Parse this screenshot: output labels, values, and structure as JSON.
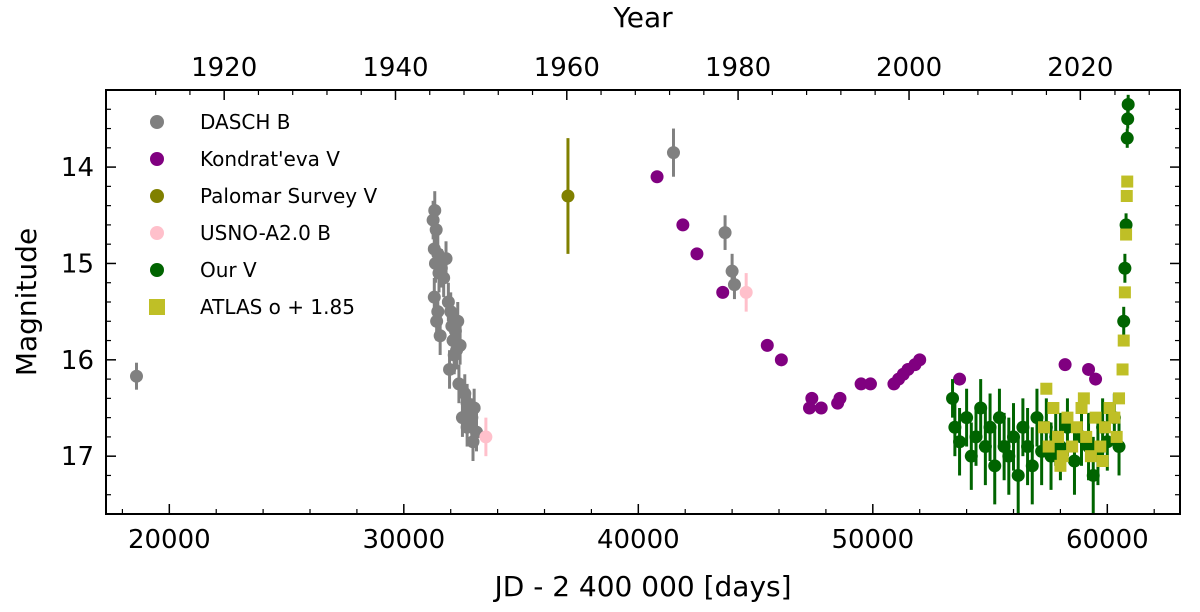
{
  "chart_data": {
    "type": "scatter",
    "xlabel": "JD - 2 400 000 [days]",
    "ylabel": "Magnitude",
    "top_xlabel": "Year",
    "xlim": [
      17300,
      63100
    ],
    "ylim": [
      17.6,
      13.2
    ],
    "x_ticks": [
      20000,
      30000,
      40000,
      50000,
      60000
    ],
    "y_ticks": [
      14,
      15,
      16,
      17
    ],
    "top_ticks": [
      {
        "year": 1920,
        "jd": 22340
      },
      {
        "year": 1940,
        "jd": 29645
      },
      {
        "year": 1960,
        "jd": 36950
      },
      {
        "year": 1980,
        "jd": 44255
      },
      {
        "year": 2000,
        "jd": 51545
      },
      {
        "year": 2020,
        "jd": 58850
      }
    ],
    "legend_position": "upper-left",
    "series": [
      {
        "name": "DASCH B",
        "color": "#808080",
        "marker": "circle",
        "points": [
          [
            18600,
            16.17,
            0.14
          ],
          [
            31250,
            14.55,
            0.2
          ],
          [
            31320,
            14.45,
            0.2
          ],
          [
            31380,
            14.65,
            0.18
          ],
          [
            31300,
            14.85,
            0.2
          ],
          [
            31450,
            14.9,
            0.2
          ],
          [
            31350,
            15.0,
            0.2
          ],
          [
            31600,
            15.05,
            0.2
          ],
          [
            31700,
            15.15,
            0.2
          ],
          [
            31500,
            15.1,
            0.2
          ],
          [
            31800,
            14.95,
            0.18
          ],
          [
            31300,
            15.35,
            0.2
          ],
          [
            31450,
            15.5,
            0.2
          ],
          [
            31400,
            15.6,
            0.2
          ],
          [
            31550,
            15.75,
            0.2
          ],
          [
            31900,
            15.4,
            0.2
          ],
          [
            32000,
            15.5,
            0.2
          ],
          [
            32050,
            15.65,
            0.2
          ],
          [
            32100,
            15.8,
            0.2
          ],
          [
            32150,
            15.95,
            0.2
          ],
          [
            31950,
            16.1,
            0.2
          ],
          [
            32200,
            15.7,
            0.2
          ],
          [
            32300,
            15.6,
            0.2
          ],
          [
            32250,
            15.9,
            0.2
          ],
          [
            32400,
            15.85,
            0.2
          ],
          [
            32350,
            16.25,
            0.2
          ],
          [
            32600,
            16.35,
            0.2
          ],
          [
            32700,
            16.45,
            0.2
          ],
          [
            32800,
            16.55,
            0.2
          ],
          [
            32500,
            16.6,
            0.2
          ],
          [
            32900,
            16.6,
            0.2
          ],
          [
            33000,
            16.5,
            0.2
          ],
          [
            32700,
            16.7,
            0.2
          ],
          [
            33100,
            16.75,
            0.2
          ],
          [
            32950,
            16.85,
            0.2
          ],
          [
            41500,
            13.85,
            0.25
          ],
          [
            43700,
            14.68,
            0.18
          ],
          [
            44000,
            15.08,
            0.18
          ],
          [
            44100,
            15.22,
            0.15
          ]
        ]
      },
      {
        "name": "Kondrat'eva V",
        "color": "#800080",
        "marker": "circle",
        "points": [
          [
            40800,
            14.1
          ],
          [
            41900,
            14.6
          ],
          [
            42500,
            14.9
          ],
          [
            43600,
            15.3
          ],
          [
            45500,
            15.85
          ],
          [
            46100,
            16.0
          ],
          [
            47400,
            16.4
          ],
          [
            47300,
            16.5
          ],
          [
            47800,
            16.5
          ],
          [
            48600,
            16.4
          ],
          [
            48500,
            16.45
          ],
          [
            49500,
            16.25
          ],
          [
            49900,
            16.25
          ],
          [
            50900,
            16.25
          ],
          [
            51100,
            16.2
          ],
          [
            51300,
            16.15
          ],
          [
            51500,
            16.1
          ],
          [
            51800,
            16.05
          ],
          [
            52000,
            16.0
          ],
          [
            53700,
            16.2
          ],
          [
            58200,
            16.05
          ],
          [
            59200,
            16.1
          ],
          [
            59500,
            16.2
          ]
        ]
      },
      {
        "name": "Palomar Survey V",
        "color": "#808000",
        "marker": "circle",
        "points": [
          [
            37000,
            14.3,
            0.6
          ]
        ]
      },
      {
        "name": "USNO-A2.0 B",
        "color": "#ffc0cb",
        "marker": "circle",
        "points": [
          [
            33500,
            16.8,
            0.2
          ],
          [
            44600,
            15.3,
            0.2
          ]
        ]
      },
      {
        "name": "Our V",
        "color": "#006400",
        "marker": "circle",
        "points": [
          [
            53400,
            16.4,
            0.2
          ],
          [
            53500,
            16.7,
            0.3
          ],
          [
            53700,
            16.85,
            0.35
          ],
          [
            54000,
            16.6,
            0.3
          ],
          [
            54200,
            17.0,
            0.35
          ],
          [
            54400,
            16.8,
            0.3
          ],
          [
            54600,
            16.5,
            0.3
          ],
          [
            54800,
            16.9,
            0.4
          ],
          [
            55000,
            16.7,
            0.35
          ],
          [
            55200,
            17.1,
            0.4
          ],
          [
            55400,
            16.6,
            0.3
          ],
          [
            55600,
            16.9,
            0.35
          ],
          [
            55800,
            17.0,
            0.4
          ],
          [
            56000,
            16.8,
            0.35
          ],
          [
            56200,
            17.2,
            0.4
          ],
          [
            56400,
            16.7,
            0.3
          ],
          [
            56600,
            16.9,
            0.4
          ],
          [
            56800,
            17.1,
            0.4
          ],
          [
            57000,
            16.6,
            0.3
          ],
          [
            57200,
            16.95,
            0.35
          ],
          [
            57400,
            16.7,
            0.3
          ],
          [
            57600,
            17.0,
            0.35
          ],
          [
            57800,
            16.8,
            0.3
          ],
          [
            58000,
            16.9,
            0.35
          ],
          [
            58300,
            16.7,
            0.3
          ],
          [
            58600,
            17.05,
            0.35
          ],
          [
            58900,
            16.8,
            0.3
          ],
          [
            59200,
            16.9,
            0.35
          ],
          [
            59400,
            17.2,
            0.4
          ],
          [
            59600,
            16.95,
            0.35
          ],
          [
            59800,
            16.7,
            0.3
          ],
          [
            60000,
            16.85,
            0.3
          ],
          [
            60300,
            16.6,
            0.25
          ],
          [
            60500,
            16.9,
            0.3
          ],
          [
            60700,
            15.6,
            0.15
          ],
          [
            60750,
            15.05,
            0.15
          ],
          [
            60800,
            14.6,
            0.12
          ],
          [
            60850,
            13.7,
            0.1
          ],
          [
            60870,
            13.5,
            0.1
          ],
          [
            60890,
            13.35,
            0.1
          ]
        ]
      },
      {
        "name": "ATLAS o + 1.85",
        "color": "#bfbf26",
        "marker": "square",
        "points": [
          [
            57300,
            16.7
          ],
          [
            57500,
            16.9
          ],
          [
            57700,
            16.5
          ],
          [
            57900,
            16.8
          ],
          [
            58100,
            17.0
          ],
          [
            58300,
            16.6
          ],
          [
            58500,
            16.9
          ],
          [
            58700,
            16.7
          ],
          [
            58900,
            16.5
          ],
          [
            59100,
            16.8
          ],
          [
            59300,
            17.0
          ],
          [
            59500,
            16.6
          ],
          [
            59700,
            16.9
          ],
          [
            59900,
            16.7
          ],
          [
            60100,
            16.5
          ],
          [
            60300,
            16.6
          ],
          [
            60500,
            16.4
          ],
          [
            60650,
            16.1
          ],
          [
            60700,
            15.8
          ],
          [
            60750,
            15.3
          ],
          [
            60800,
            14.7
          ],
          [
            60830,
            14.3
          ],
          [
            60850,
            14.15
          ],
          [
            57400,
            16.3
          ],
          [
            58000,
            17.1
          ],
          [
            59000,
            16.4
          ],
          [
            59800,
            17.05
          ],
          [
            60400,
            16.8
          ]
        ]
      }
    ]
  }
}
